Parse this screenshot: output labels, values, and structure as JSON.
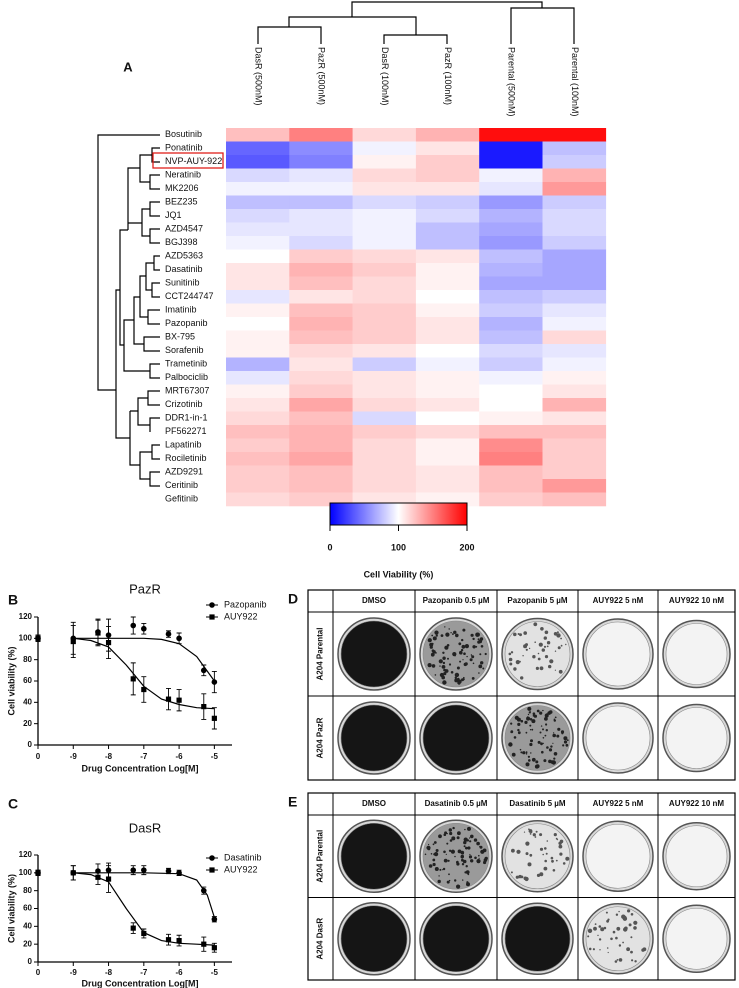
{
  "chart_data": [
    {
      "type": "heatmap",
      "panel": "A",
      "x": [
        "DasR (500nM)",
        "PazR (500nM)",
        "DasR (100nM)",
        "PazR (100nM)",
        "Parental (500nM)",
        "Parental (100nM)"
      ],
      "y": [
        "Bosutinib",
        "Ponatinib",
        "NVP-AUY-922",
        "Neratinib",
        "MK2206",
        "BEZ235",
        "JQ1",
        "AZD4547",
        "BGJ398",
        "AZD5363",
        "Dasatinib",
        "Sunitinib",
        "CCT244747",
        "Imatinib",
        "Pazopanib",
        "BX-795",
        "Sorafenib",
        "Trametinib",
        "Palbociclib",
        "MRT67307",
        "Crizotinib",
        "DDR1-in-1",
        "PF562271",
        "Lapatinib",
        "Rociletinib",
        "AZD9291",
        "Ceritinib",
        "Gefitinib"
      ],
      "values": [
        [
          125,
          150,
          115,
          130,
          195,
          195
        ],
        [
          40,
          55,
          95,
          110,
          10,
          75
        ],
        [
          35,
          50,
          105,
          120,
          10,
          80
        ],
        [
          85,
          90,
          115,
          120,
          95,
          130
        ],
        [
          95,
          95,
          110,
          110,
          90,
          140
        ],
        [
          75,
          75,
          85,
          80,
          60,
          80
        ],
        [
          85,
          90,
          95,
          85,
          70,
          85
        ],
        [
          90,
          90,
          95,
          75,
          65,
          85
        ],
        [
          95,
          85,
          95,
          75,
          60,
          80
        ],
        [
          100,
          120,
          115,
          110,
          75,
          65
        ],
        [
          110,
          130,
          120,
          105,
          70,
          65
        ],
        [
          110,
          125,
          115,
          105,
          65,
          65
        ],
        [
          90,
          110,
          115,
          100,
          75,
          80
        ],
        [
          105,
          125,
          120,
          105,
          80,
          90
        ],
        [
          100,
          130,
          120,
          110,
          70,
          95
        ],
        [
          105,
          125,
          120,
          110,
          75,
          115
        ],
        [
          105,
          115,
          110,
          100,
          85,
          90
        ],
        [
          70,
          110,
          80,
          95,
          80,
          95
        ],
        [
          90,
          115,
          110,
          105,
          95,
          105
        ],
        [
          105,
          120,
          110,
          105,
          100,
          110
        ],
        [
          110,
          135,
          115,
          110,
          100,
          130
        ],
        [
          115,
          125,
          85,
          100,
          105,
          110
        ],
        [
          125,
          130,
          120,
          115,
          125,
          125
        ],
        [
          120,
          130,
          115,
          105,
          145,
          120
        ],
        [
          125,
          135,
          115,
          105,
          150,
          120
        ],
        [
          120,
          125,
          115,
          110,
          125,
          120
        ],
        [
          120,
          125,
          115,
          110,
          125,
          140
        ],
        [
          115,
          120,
          110,
          105,
          120,
          125
        ]
      ],
      "colormap": {
        "low": "#0000ff",
        "mid": "#ffffff",
        "high": "#ff0000"
      },
      "colorbar": {
        "lim": [
          0,
          200
        ],
        "ticks": [
          0,
          100,
          200
        ],
        "label": "Cell Viability (%)"
      }
    },
    {
      "type": "scatter",
      "panel": "B",
      "title": "PazR",
      "xlabel": "Drug Concentration Log[M]",
      "ylabel": "Cell  viability (%)",
      "xlim": [
        -10,
        -4.5
      ],
      "xticks": [
        {
          "value": -10,
          "label": "0"
        },
        -9,
        -8,
        -7,
        -6,
        -5
      ],
      "ylim": [
        0,
        120
      ],
      "yticks": [
        0,
        20,
        40,
        60,
        80,
        100,
        120
      ],
      "legend": "upper right",
      "x": [
        -10,
        -9,
        -8.3,
        -8,
        -7.3,
        -7,
        -6.3,
        -6,
        -5.3,
        -5
      ],
      "series": [
        {
          "name": "Pazopanib",
          "color": "#000000",
          "marker": "circle",
          "values": [
            100,
            100,
            106,
            103,
            112,
            109,
            104,
            100,
            70,
            59
          ],
          "errors": [
            3,
            15,
            12,
            15,
            8,
            5,
            3,
            5,
            5,
            10
          ],
          "fit": {
            "x": [
              -9,
              -8,
              -7,
              -6.5,
              -6,
              -5.5,
              -5
            ],
            "y": [
              100,
              100,
              100,
              99,
              95,
              83,
              60
            ]
          }
        },
        {
          "name": "AUY922",
          "color": "#000000",
          "marker": "square",
          "values": [
            100,
            97,
            105,
            96,
            62,
            52,
            43,
            42,
            36,
            25
          ],
          "errors": [
            3,
            15,
            12,
            15,
            15,
            12,
            10,
            10,
            12,
            10
          ],
          "fit": {
            "x": [
              -9,
              -8.5,
              -8,
              -7.5,
              -7,
              -6.5,
              -6,
              -5.5,
              -5
            ],
            "y": [
              100,
              98,
              92,
              75,
              55,
              43,
              38,
              35,
              34
            ]
          }
        }
      ]
    },
    {
      "type": "scatter",
      "panel": "C",
      "title": "DasR",
      "xlabel": "Drug Concentration Log[M]",
      "ylabel": "Cell  viability (%)",
      "xlim": [
        -10,
        -4.5
      ],
      "xticks": [
        {
          "value": -10,
          "label": "0"
        },
        -9,
        -8,
        -7,
        -6,
        -5
      ],
      "ylim": [
        0,
        120
      ],
      "yticks": [
        0,
        20,
        40,
        60,
        80,
        100,
        120
      ],
      "legend": "upper right",
      "x": [
        -10,
        -9,
        -8.3,
        -8,
        -7.3,
        -7,
        -6.3,
        -6,
        -5.3,
        -5
      ],
      "series": [
        {
          "name": "Dasatinib",
          "color": "#000000",
          "marker": "circle",
          "values": [
            100,
            100,
            102,
            103,
            103,
            103,
            102,
            100,
            80,
            48
          ],
          "errors": [
            3,
            8,
            8,
            8,
            5,
            5,
            3,
            3,
            4,
            3
          ],
          "fit": {
            "x": [
              -9,
              -7,
              -6,
              -5.5,
              -5.2,
              -5
            ],
            "y": [
              100,
              100,
              99,
              92,
              75,
              50
            ]
          }
        },
        {
          "name": "AUY922",
          "color": "#000000",
          "marker": "square",
          "values": [
            100,
            100,
            95,
            93,
            38,
            32,
            25,
            24,
            20,
            16
          ],
          "errors": [
            3,
            8,
            8,
            15,
            6,
            5,
            6,
            6,
            8,
            5
          ],
          "fit": {
            "x": [
              -9,
              -8.5,
              -8,
              -7.5,
              -7,
              -6.5,
              -6,
              -5.5,
              -5
            ],
            "y": [
              100,
              98,
              90,
              60,
              33,
              24,
              21,
              20,
              19
            ]
          }
        }
      ]
    }
  ],
  "panels": [
    {
      "label": "D",
      "columns": [
        "DMSO",
        "Pazopanib 0.5 µM",
        "Pazopanib 5 µM",
        "AUY922 5 nM",
        "AUY922 10 nM"
      ],
      "rows": [
        "A204 Parental",
        "A204 PazR"
      ]
    },
    {
      "label": "E",
      "columns": [
        "DMSO",
        "Dasatinib 0.5 µM",
        "Dasatinib 5 µM",
        "AUY922 5 nM",
        "AUY922 10 nM"
      ],
      "rows": [
        "A204 Parental",
        "A204 DasR"
      ]
    }
  ]
}
